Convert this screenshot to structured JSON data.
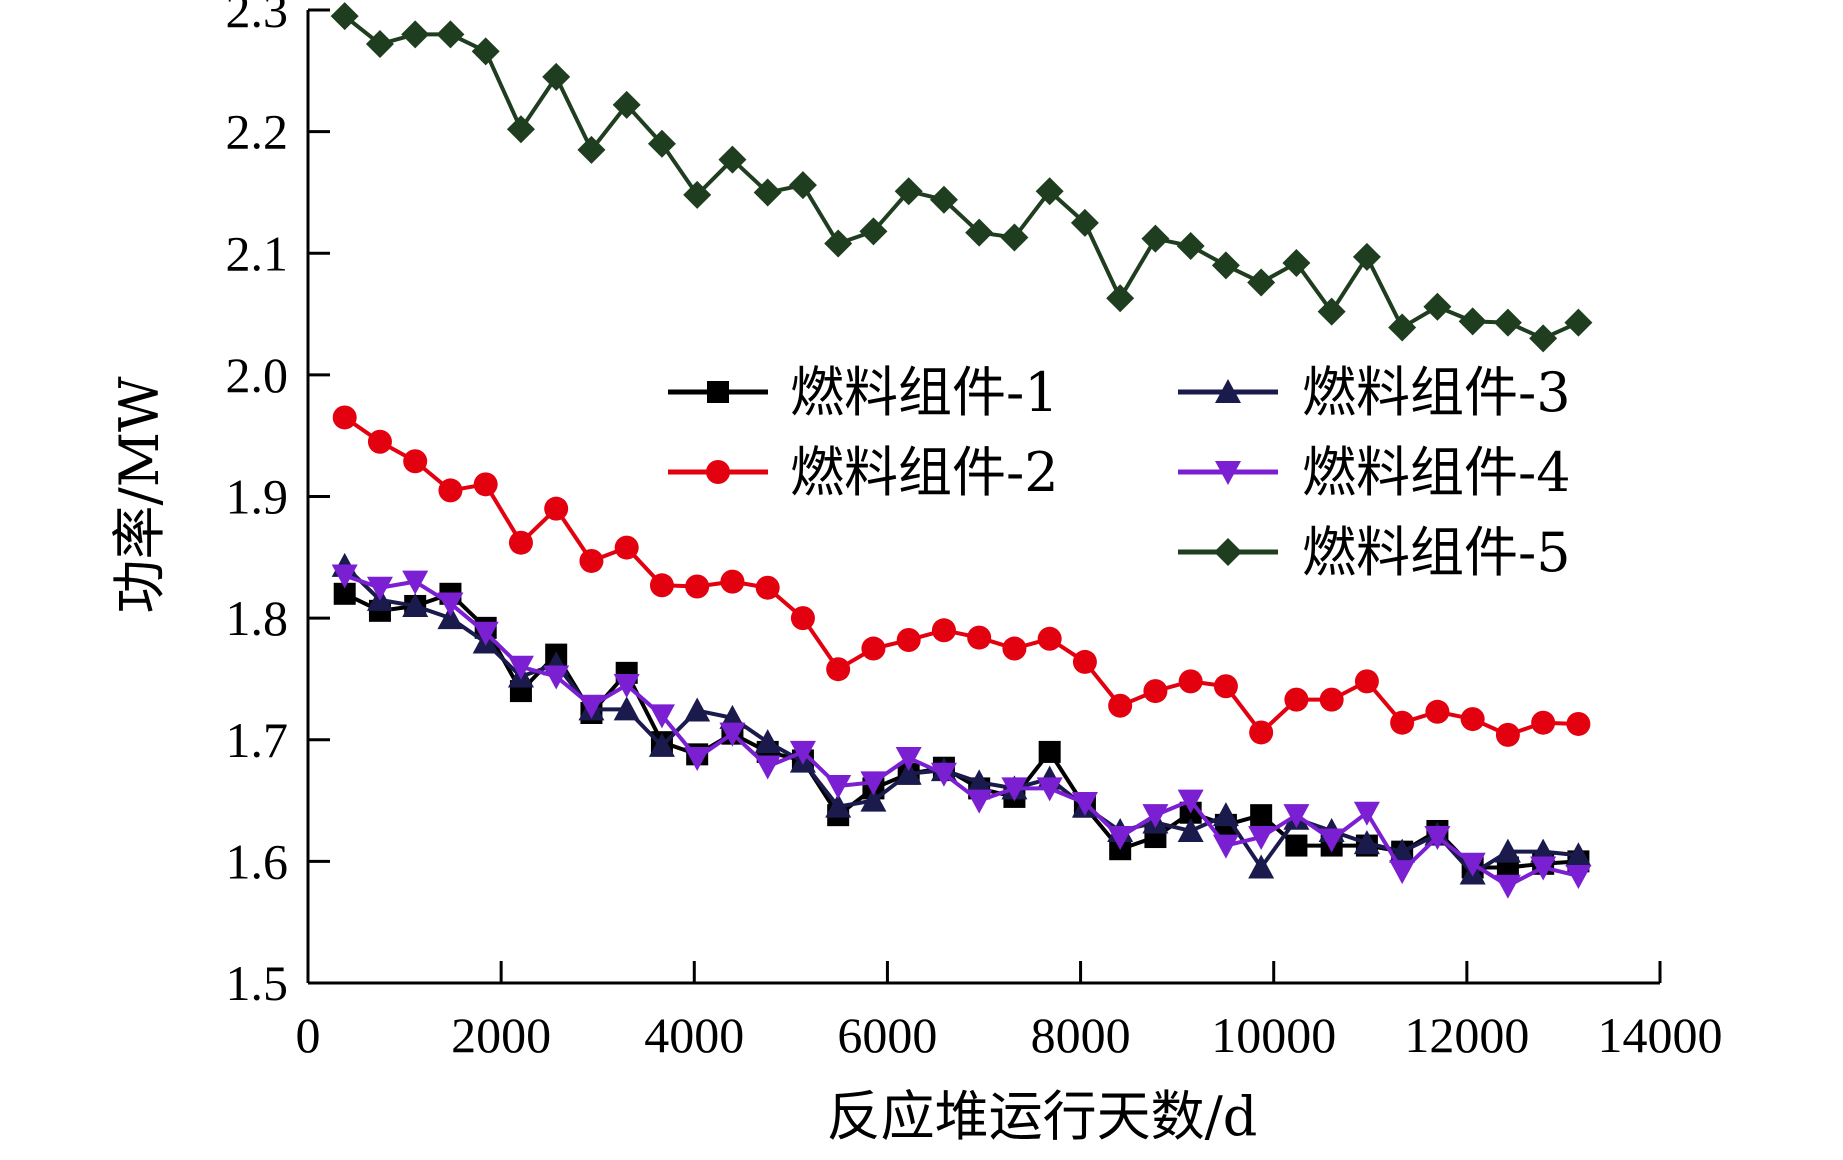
{
  "chart_data": {
    "type": "line",
    "xlabel": "反应堆运行天数/d",
    "ylabel": "功率/MW",
    "xlim": [
      0,
      14000
    ],
    "ylim": [
      1.5,
      2.3
    ],
    "xticks": [
      "0",
      "2000",
      "4000",
      "6000",
      "8000",
      "10000",
      "12000",
      "14000"
    ],
    "yticks": [
      "1.5",
      "1.6",
      "1.7",
      "1.8",
      "1.9",
      "2.0",
      "2.1",
      "2.2",
      "2.3"
    ],
    "grid": false,
    "legend_position": "center-right",
    "x": [
      380,
      745,
      1110,
      1475,
      1840,
      2205,
      2570,
      2935,
      3300,
      3665,
      4030,
      4395,
      4760,
      5125,
      5490,
      5855,
      6220,
      6585,
      6950,
      7315,
      7680,
      8045,
      8410,
      8775,
      9140,
      9505,
      9870,
      10235,
      10600,
      10965,
      11330,
      11695,
      12060,
      12425,
      12790,
      13155
    ],
    "series": [
      {
        "name": "燃料组件-1",
        "color": "#000000",
        "marker": "square",
        "values": [
          1.82,
          1.806,
          1.81,
          1.82,
          1.792,
          1.74,
          1.77,
          1.722,
          1.755,
          1.698,
          1.688,
          1.705,
          1.69,
          1.683,
          1.638,
          1.66,
          1.672,
          1.677,
          1.66,
          1.653,
          1.69,
          1.645,
          1.61,
          1.62,
          1.64,
          1.63,
          1.638,
          1.613,
          1.613,
          1.613,
          1.608,
          1.625,
          1.595,
          1.595,
          1.598,
          1.6
        ]
      },
      {
        "name": "燃料组件-2",
        "color": "#e3000f",
        "marker": "circle",
        "values": [
          1.965,
          1.945,
          1.929,
          1.905,
          1.91,
          1.862,
          1.89,
          1.847,
          1.858,
          1.827,
          1.826,
          1.83,
          1.825,
          1.8,
          1.758,
          1.775,
          1.782,
          1.79,
          1.784,
          1.775,
          1.783,
          1.764,
          1.728,
          1.74,
          1.748,
          1.744,
          1.706,
          1.733,
          1.733,
          1.748,
          1.714,
          1.723,
          1.717,
          1.704,
          1.714,
          1.713
        ]
      },
      {
        "name": "燃料组件-3",
        "color": "#1a1a4d",
        "marker": "triangle-up",
        "values": [
          1.843,
          1.815,
          1.81,
          1.8,
          1.78,
          1.752,
          1.762,
          1.725,
          1.725,
          1.695,
          1.724,
          1.718,
          1.698,
          1.682,
          1.645,
          1.65,
          1.672,
          1.675,
          1.665,
          1.66,
          1.668,
          1.645,
          1.625,
          1.632,
          1.625,
          1.638,
          1.595,
          1.635,
          1.625,
          1.615,
          1.608,
          1.622,
          1.59,
          1.608,
          1.608,
          1.605
        ]
      },
      {
        "name": "燃料组件-4",
        "color": "#7a1fd1",
        "marker": "triangle-down",
        "values": [
          1.835,
          1.825,
          1.83,
          1.812,
          1.788,
          1.76,
          1.752,
          1.728,
          1.745,
          1.72,
          1.685,
          1.705,
          1.678,
          1.69,
          1.662,
          1.665,
          1.685,
          1.672,
          1.65,
          1.66,
          1.66,
          1.648,
          1.62,
          1.638,
          1.65,
          1.613,
          1.62,
          1.638,
          1.618,
          1.64,
          1.592,
          1.62,
          1.598,
          1.58,
          1.595,
          1.588
        ]
      },
      {
        "name": "燃料组件-5",
        "color": "#1f3d1f",
        "marker": "diamond",
        "values": [
          2.295,
          2.272,
          2.28,
          2.28,
          2.266,
          2.202,
          2.245,
          2.185,
          2.222,
          2.19,
          2.148,
          2.177,
          2.15,
          2.156,
          2.108,
          2.118,
          2.151,
          2.144,
          2.117,
          2.113,
          2.151,
          2.125,
          2.063,
          2.112,
          2.106,
          2.09,
          2.076,
          2.092,
          2.052,
          2.097,
          2.039,
          2.056,
          2.044,
          2.043,
          2.03,
          2.043
        ]
      }
    ]
  }
}
